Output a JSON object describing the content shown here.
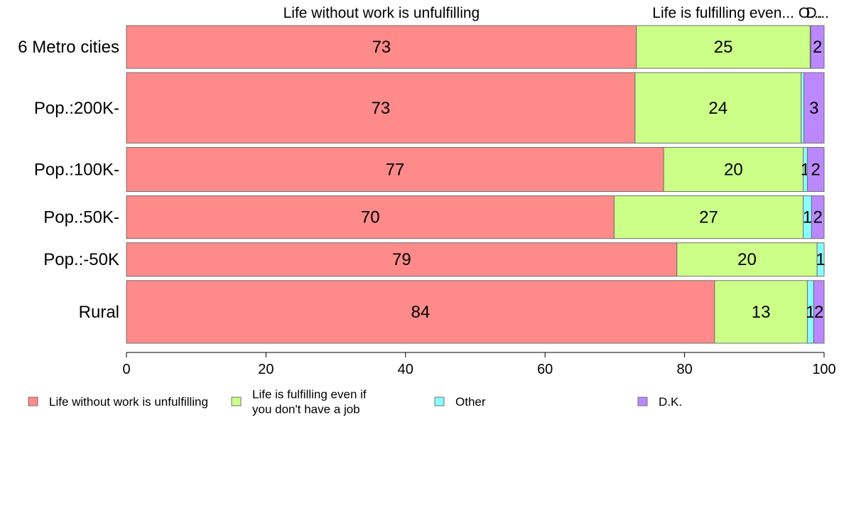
{
  "chart_data": {
    "type": "bar",
    "orientation": "horizontal",
    "stacked": true,
    "categories": [
      "6 Metro cities",
      "Pop.:200K-",
      "Pop.:100K-",
      "Pop.:50K-",
      "Pop.:-50K",
      "Rural"
    ],
    "series": [
      {
        "name": "Life without work is unfulfilling",
        "color": "#FF8A8A",
        "values": [
          73.1,
          72.9,
          77.0,
          69.9,
          78.9,
          84.3
        ]
      },
      {
        "name": "Life is fulfilling even if you don't have a job",
        "color": "#CCFF88",
        "values": [
          24.9,
          23.8,
          20.0,
          27.1,
          20.1,
          13.3
        ]
      },
      {
        "name": "Other",
        "color": "#88FFFF",
        "values": [
          0.1,
          0.4,
          0.6,
          1.2,
          1.0,
          0.9
        ]
      },
      {
        "name": "D.K.",
        "color": "#BB88FF",
        "values": [
          1.9,
          2.9,
          2.4,
          1.8,
          0.0,
          1.5
        ]
      }
    ],
    "segment_labels": [
      [
        "73",
        "25",
        "",
        "2"
      ],
      [
        "73",
        "24",
        "",
        "3"
      ],
      [
        "77",
        "20",
        "1",
        "2"
      ],
      [
        "70",
        "27",
        "1",
        "2"
      ],
      [
        "79",
        "20",
        "1",
        ""
      ],
      [
        "84",
        "13",
        "1",
        "2"
      ]
    ],
    "top_labels": [
      "Life without work is unfulfilling",
      "Life is fulfilling even...",
      "O...",
      "D..."
    ],
    "xlim": [
      0,
      100
    ],
    "xticks": [
      0,
      20,
      40,
      60,
      80,
      100
    ],
    "xtick_labels": [
      "0",
      "20",
      "40",
      "60",
      "80",
      "100"
    ],
    "legend": {
      "position": "bottom",
      "entries": [
        [
          "Life without work is unfulfilling"
        ],
        [
          "Life is fulfilling even if",
          "you don't have a job"
        ],
        [
          "Other"
        ],
        [
          "D.K."
        ]
      ]
    },
    "bar_heights_relative": [
      60,
      99,
      62,
      60,
      47,
      88
    ],
    "grid": false
  }
}
